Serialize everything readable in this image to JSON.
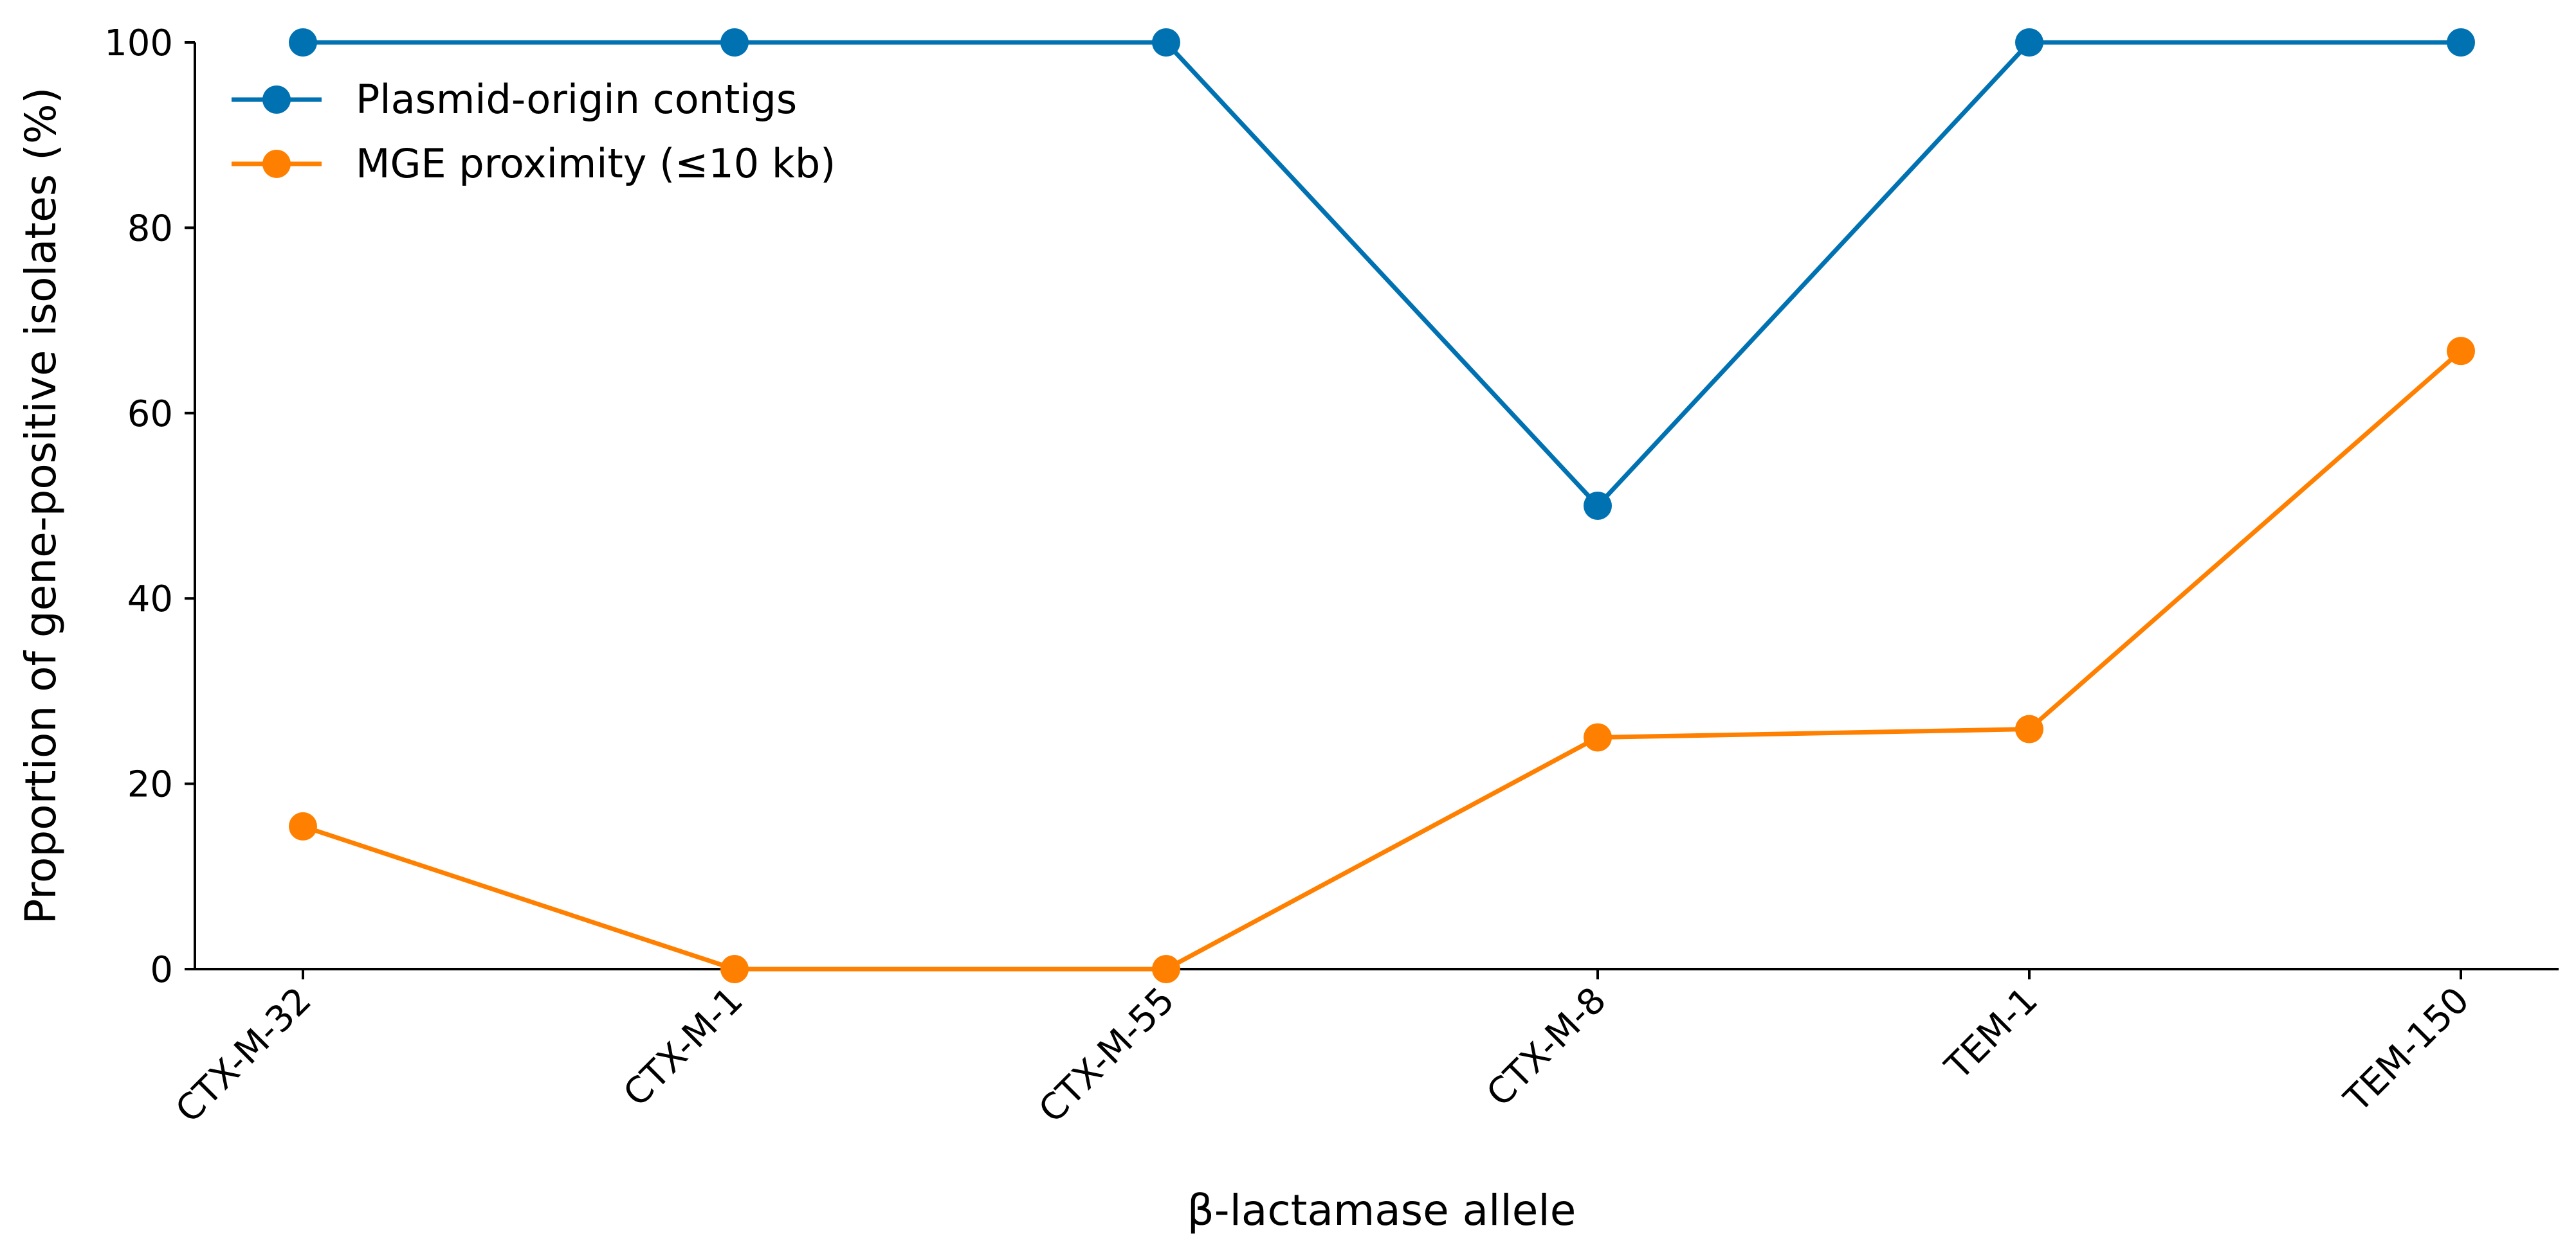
{
  "chart_data": {
    "type": "line",
    "title": "",
    "xlabel": "β-lactamase allele",
    "ylabel": "Proportion of gene-positive isolates (%)",
    "categories": [
      "CTX-M-32",
      "CTX-M-1",
      "CTX-M-55",
      "CTX-M-8",
      "TEM-1",
      "TEM-150"
    ],
    "ylim": [
      0,
      100
    ],
    "yticks": [
      0,
      20,
      40,
      60,
      80,
      100
    ],
    "grid": false,
    "legend_position": "top-left",
    "series": [
      {
        "name": "Plasmid-origin contigs",
        "color": "#0072B2",
        "values": [
          100,
          100,
          100,
          50,
          100,
          100
        ]
      },
      {
        "name": "MGE proximity (≤10 kb)",
        "color": "#FF8000",
        "values": [
          15.4,
          0,
          0,
          25,
          25.9,
          66.7
        ]
      }
    ]
  }
}
